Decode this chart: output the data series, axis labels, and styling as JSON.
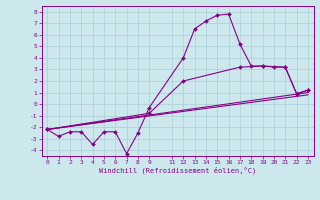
{
  "xlabel": "Windchill (Refroidissement éolien,°C)",
  "bg_color": "#cce8ec",
  "grid_color": "#aacdd4",
  "line_color": "#880088",
  "spine_color": "#880088",
  "xlim": [
    -0.5,
    23.5
  ],
  "ylim": [
    -4.5,
    8.5
  ],
  "xticks": [
    0,
    1,
    2,
    3,
    4,
    5,
    6,
    7,
    8,
    9,
    11,
    12,
    13,
    14,
    15,
    16,
    17,
    18,
    19,
    20,
    21,
    22,
    23
  ],
  "yticks": [
    -4,
    -3,
    -2,
    -1,
    0,
    1,
    2,
    3,
    4,
    5,
    6,
    7,
    8
  ],
  "curve1_x": [
    0,
    1,
    2,
    3,
    4,
    5,
    6,
    7,
    8,
    9,
    12,
    13,
    14,
    15,
    16,
    17,
    18,
    19,
    20,
    21,
    22,
    23
  ],
  "curve1_y": [
    -2.2,
    -2.8,
    -2.4,
    -2.4,
    -3.5,
    -2.4,
    -2.4,
    -4.3,
    -2.5,
    -0.3,
    4.0,
    6.5,
    7.2,
    7.7,
    7.8,
    5.2,
    3.3,
    3.3,
    3.2,
    3.2,
    0.9,
    1.2
  ],
  "curve2_x": [
    0,
    9,
    12,
    17,
    19,
    21,
    22,
    23
  ],
  "curve2_y": [
    -2.2,
    -0.8,
    2.0,
    3.2,
    3.3,
    3.2,
    0.9,
    1.2
  ],
  "curve3_x": [
    0,
    23
  ],
  "curve3_y": [
    -2.2,
    0.8
  ],
  "curve4_x": [
    0,
    23
  ],
  "curve4_y": [
    -2.2,
    1.0
  ]
}
